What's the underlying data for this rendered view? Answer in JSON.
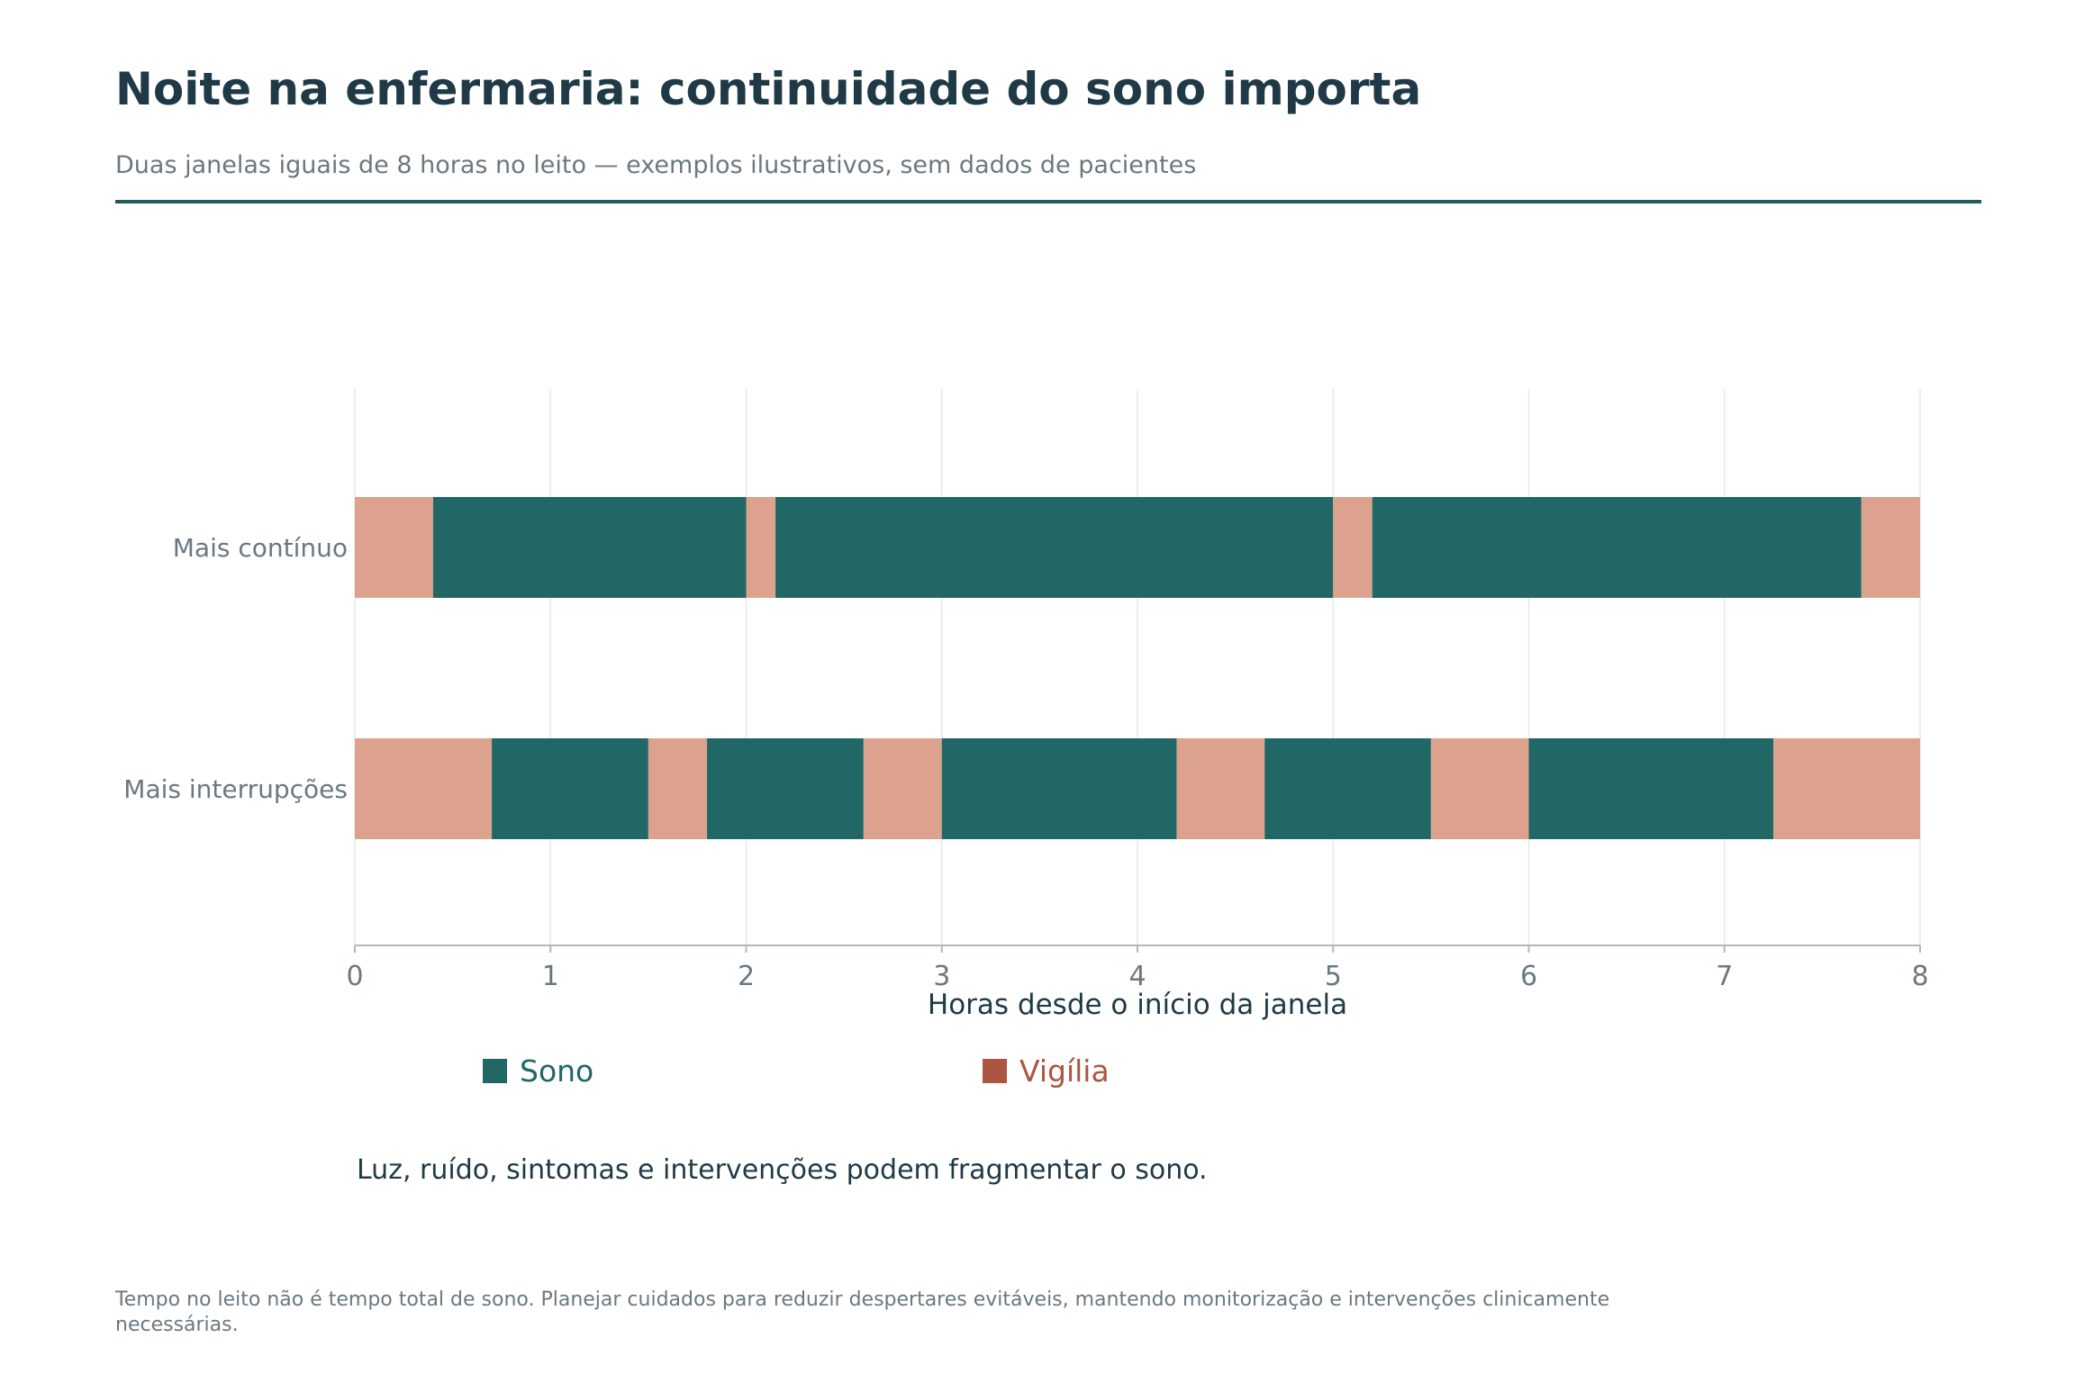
{
  "header": {
    "title": "Noite na enfermaria: continuidade do sono importa",
    "subtitle": "Duas janelas iguais de 8 horas no leito — exemplos ilustrativos, sem dados de pacientes"
  },
  "colors": {
    "sleep": "#206766",
    "wake": "#dca28d",
    "wake_legend": "#ac5540",
    "accent_rule": "#1f5a60",
    "grid": "#e8e8e8",
    "axis": "#b0b8bc"
  },
  "chart_data": {
    "type": "bar",
    "orientation": "horizontal",
    "stacked": true,
    "categories": [
      "Mais contínuo",
      "Mais interrupções"
    ],
    "xlabel": "Horas desde o início da janela",
    "xlim": [
      0,
      8
    ],
    "xticks": [
      "0",
      "1",
      "2",
      "3",
      "4",
      "5",
      "6",
      "7",
      "8"
    ],
    "grid": true,
    "legend_position": "bottom",
    "legend": [
      {
        "key": "sleep",
        "label": "Sono"
      },
      {
        "key": "wake",
        "label": "Vigília"
      }
    ],
    "rows": [
      {
        "category": "Mais contínuo",
        "segments": [
          {
            "state": "wake",
            "start": 0,
            "end": 0.4
          },
          {
            "state": "sleep",
            "start": 0.4,
            "end": 2.0
          },
          {
            "state": "wake",
            "start": 2.0,
            "end": 2.15
          },
          {
            "state": "sleep",
            "start": 2.15,
            "end": 5.0
          },
          {
            "state": "wake",
            "start": 5.0,
            "end": 5.2
          },
          {
            "state": "sleep",
            "start": 5.2,
            "end": 7.7
          },
          {
            "state": "wake",
            "start": 7.7,
            "end": 8.0
          }
        ]
      },
      {
        "category": "Mais interrupções",
        "segments": [
          {
            "state": "wake",
            "start": 0,
            "end": 0.7
          },
          {
            "state": "sleep",
            "start": 0.7,
            "end": 1.5
          },
          {
            "state": "wake",
            "start": 1.5,
            "end": 1.8
          },
          {
            "state": "sleep",
            "start": 1.8,
            "end": 2.6
          },
          {
            "state": "wake",
            "start": 2.6,
            "end": 3.0
          },
          {
            "state": "sleep",
            "start": 3.0,
            "end": 4.2
          },
          {
            "state": "wake",
            "start": 4.2,
            "end": 4.65
          },
          {
            "state": "sleep",
            "start": 4.65,
            "end": 5.5
          },
          {
            "state": "wake",
            "start": 5.5,
            "end": 6.0
          },
          {
            "state": "sleep",
            "start": 6.0,
            "end": 7.25
          },
          {
            "state": "wake",
            "start": 7.25,
            "end": 8.0
          }
        ]
      }
    ]
  },
  "note": "Luz, ruído, sintomas e intervenções podem fragmentar o sono.",
  "footnote": "Tempo no leito não é tempo total de sono. Planejar cuidados para reduzir despertares evitáveis, mantendo monitorização e intervenções clinicamente necessárias."
}
